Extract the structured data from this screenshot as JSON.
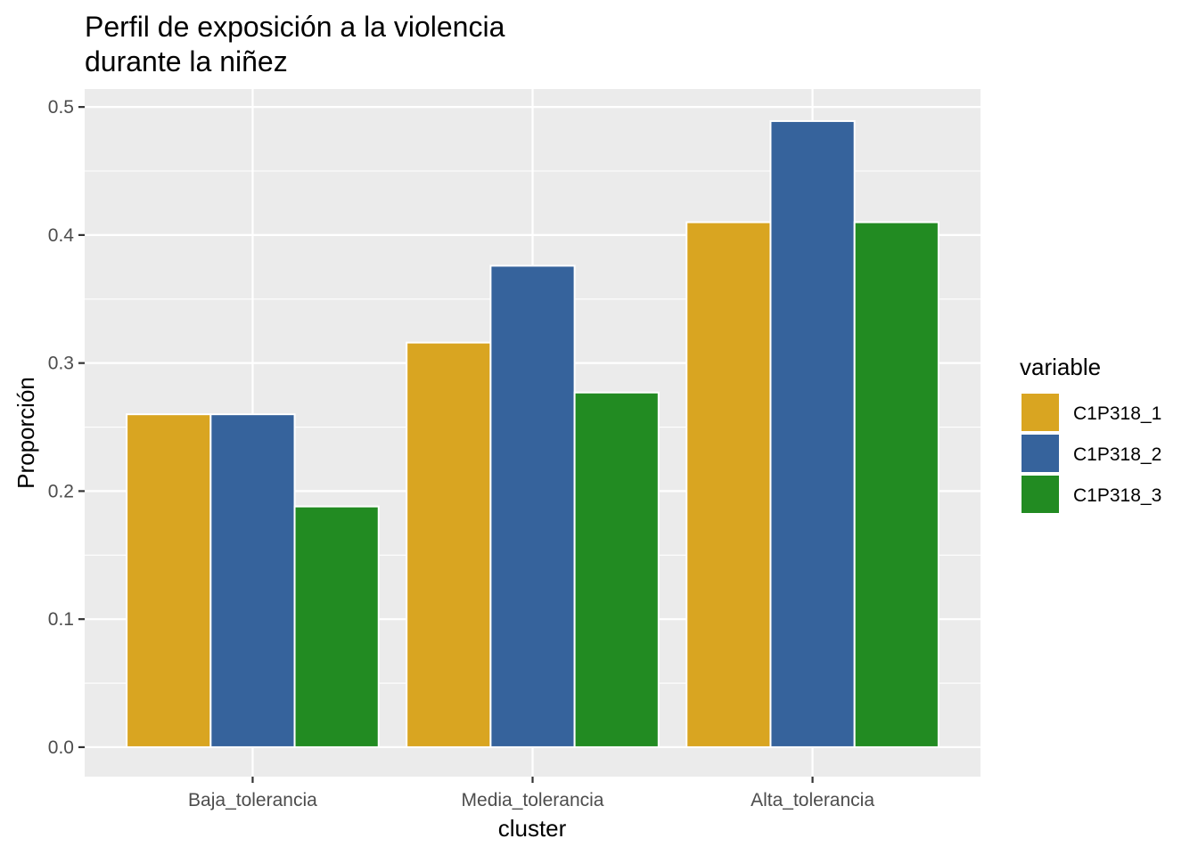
{
  "chart_data": {
    "type": "bar",
    "title": "Perfil de exposición a la violencia durante la niñez",
    "title_lines": [
      "Perfil de exposición a la violencia",
      "durante la niñez"
    ],
    "xlabel": "cluster",
    "ylabel": "Proporción",
    "categories": [
      "Baja_tolerancia",
      "Media_tolerancia",
      "Alta_tolerancia"
    ],
    "series": [
      {
        "name": "C1P318_1",
        "color": "#D9A521",
        "values": [
          0.26,
          0.316,
          0.41
        ]
      },
      {
        "name": "C1P318_2",
        "color": "#36639C",
        "values": [
          0.26,
          0.376,
          0.489
        ]
      },
      {
        "name": "C1P318_3",
        "color": "#228B22",
        "values": [
          0.188,
          0.277,
          0.41
        ]
      }
    ],
    "ylim": [
      -0.023,
      0.514
    ],
    "yticks": [
      0.0,
      0.1,
      0.2,
      0.3,
      0.4,
      0.5
    ],
    "ytick_labels": [
      "0.0",
      "0.1",
      "0.2",
      "0.3",
      "0.4",
      "0.5"
    ],
    "legend": {
      "title": "variable",
      "position": "right"
    },
    "grid": true,
    "panel_background": "#EBEBEB",
    "grid_color": "#FFFFFF"
  }
}
